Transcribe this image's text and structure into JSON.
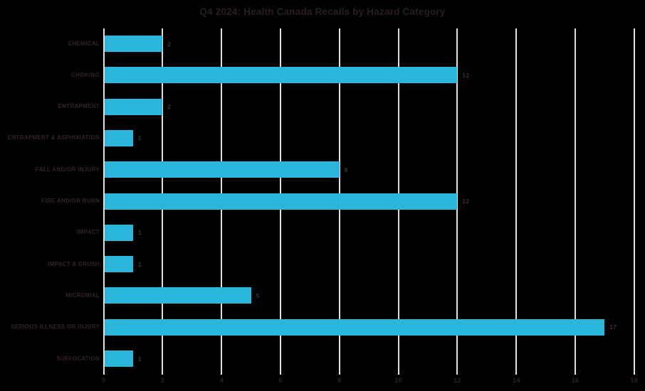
{
  "chart_data": {
    "type": "bar",
    "orientation": "horizontal",
    "title": "Q4 2024: Health Canada Recalls by Hazard Category",
    "categories": [
      "CHEMICAL",
      "CHOKING",
      "ENTRAPMENT",
      "ENTRAPMENT & ASPHIXIATION",
      "FALL AND/OR INJURY",
      "FIRE AND/OR BURN",
      "IMPACT",
      "IMPACT & CRUSH",
      "MICROBIAL",
      "SERIOUS ILLNESS OR INJURY",
      "SUFFOCATION"
    ],
    "values": [
      2,
      12,
      2,
      1,
      8,
      12,
      1,
      1,
      5,
      17,
      1
    ],
    "value_labels": [
      "2",
      "12",
      "2",
      "1",
      "8",
      "12",
      "1",
      "1",
      "5",
      "17",
      "1"
    ],
    "xlabel": "",
    "ylabel": "",
    "xlim": [
      0,
      18
    ],
    "xticks": [
      "0",
      "2",
      "4",
      "6",
      "8",
      "10",
      "12",
      "14",
      "16",
      "18"
    ],
    "grid": "vertical-only",
    "legend": "none",
    "colors": {
      "background": "#000000",
      "bar": "#29B6DA",
      "gridline": "#E9DADF",
      "title_text": "#2A1D23",
      "category_text": "#33222B",
      "tick_text": "#2F2027",
      "value_text": "#422D38"
    }
  }
}
